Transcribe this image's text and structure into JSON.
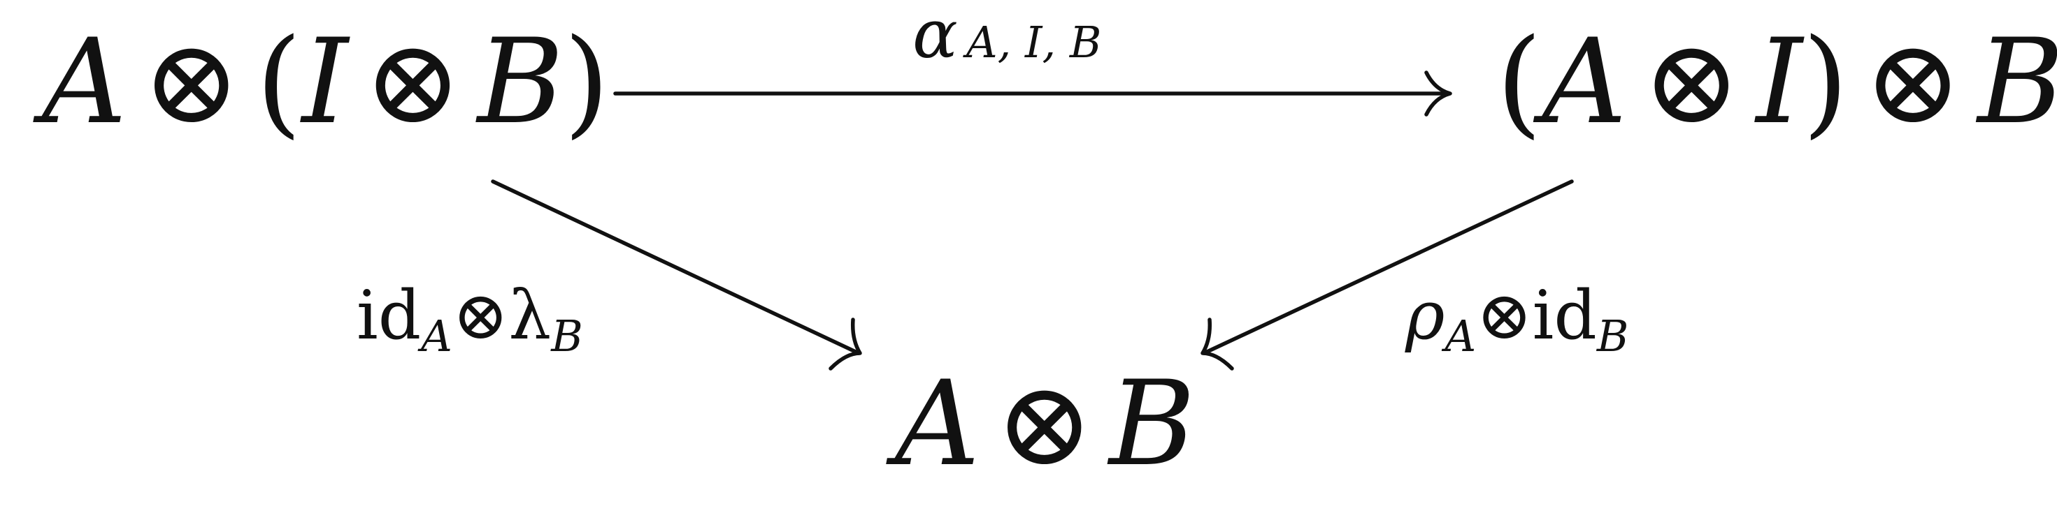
{
  "nodes": {
    "left": {
      "pieces": [
        {
          "t": "A",
          "i": true
        },
        {
          "t": "⊗",
          "i": false
        },
        {
          "t": "(",
          "i": false
        },
        {
          "t": "I",
          "i": true
        },
        {
          "t": "⊗",
          "i": false
        },
        {
          "t": "B",
          "i": true
        },
        {
          "t": ")",
          "i": false
        }
      ]
    },
    "right": {
      "pieces": [
        {
          "t": "(",
          "i": false
        },
        {
          "t": "A",
          "i": true
        },
        {
          "t": "⊗",
          "i": false
        },
        {
          "t": "I",
          "i": true
        },
        {
          "t": ")",
          "i": false
        },
        {
          "t": "⊗",
          "i": false
        },
        {
          "t": "B",
          "i": true
        }
      ]
    },
    "bottom": {
      "pieces": [
        {
          "t": "A",
          "i": true
        },
        {
          "t": "⊗",
          "i": false
        },
        {
          "t": "B",
          "i": true
        }
      ]
    }
  },
  "edges": {
    "top": {
      "symbol": "α",
      "subscript": "A, I, B"
    },
    "left": {
      "main": "id",
      "sub1": "A",
      "op": "⊗",
      "main2": "λ",
      "sub2": "B"
    },
    "right": {
      "main": "ρ",
      "sub1": "A",
      "op": "⊗",
      "main2": "id",
      "sub2": "B"
    }
  }
}
